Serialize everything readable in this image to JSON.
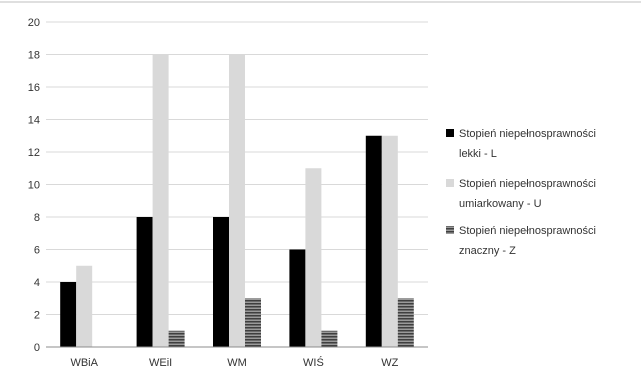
{
  "chart_data": {
    "type": "bar",
    "categories": [
      "WBiA",
      "WEiI",
      "WM",
      "WIŚ",
      "WZ"
    ],
    "series": [
      {
        "name": "Stopień niepełnosprawności lekki - L",
        "legend_lines": [
          "Stopień niepełnosprawności",
          "lekki - L"
        ],
        "values": [
          4,
          8,
          8,
          6,
          13
        ],
        "color": "#000000",
        "pattern": "solid"
      },
      {
        "name": "Stopień niepełnosprawności umiarkowany - U",
        "legend_lines": [
          "Stopień niepełnosprawności",
          "umiarkowany - U"
        ],
        "values": [
          5,
          18,
          18,
          11,
          13
        ],
        "color": "#d9d9d9",
        "pattern": "solid"
      },
      {
        "name": "Stopień niepełnosprawności znaczny - Z",
        "legend_lines": [
          "Stopień niepełnosprawności",
          "znaczny - Z"
        ],
        "values": [
          0,
          1,
          3,
          1,
          3
        ],
        "color": "#595959",
        "pattern": "horizontal-stripes"
      }
    ],
    "yticks": [
      "0",
      "2",
      "4",
      "6",
      "8",
      "10",
      "12",
      "14",
      "16",
      "18",
      "20"
    ],
    "ylim": [
      0,
      20
    ],
    "grid": true,
    "legend_position": "right"
  }
}
